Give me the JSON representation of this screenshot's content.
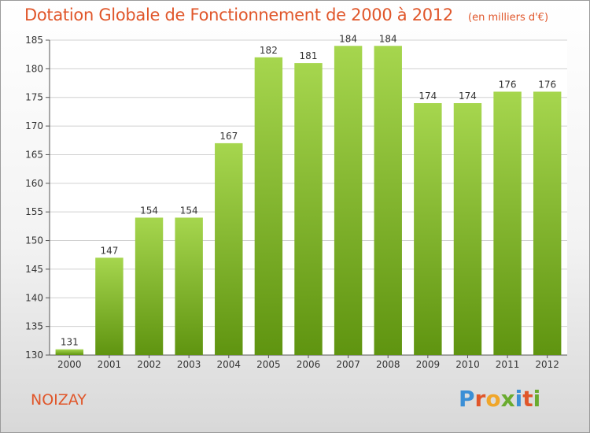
{
  "header": {
    "title": "Dotation Globale de Fonctionnement de 2000 à 2012",
    "unit": "(en milliers d'€)"
  },
  "footer": {
    "commune": "NOIZAY",
    "brand": "Proxiti",
    "brand_colors": [
      "#3b8fd6",
      "#e0562a",
      "#f0a62a",
      "#6aab2f",
      "#3b8fd6",
      "#e0562a",
      "#6aab2f"
    ]
  },
  "colors": {
    "bar_light": "#a6d64e",
    "bar_dark": "#5f9410",
    "grid": "#d0d0d0",
    "axis": "#555555",
    "text": "#333333"
  },
  "chart_data": {
    "type": "bar",
    "categories": [
      "2000",
      "2001",
      "2002",
      "2003",
      "2004",
      "2005",
      "2006",
      "2007",
      "2008",
      "2009",
      "2010",
      "2011",
      "2012"
    ],
    "values": [
      131,
      147,
      154,
      154,
      167,
      182,
      181,
      184,
      184,
      174,
      174,
      176,
      176
    ],
    "data_labels": [
      "131",
      "147",
      "154",
      "154",
      "167",
      "182",
      "181",
      "184",
      "184",
      "174",
      "174",
      "176",
      "176"
    ],
    "yticks": [
      "130",
      "135",
      "140",
      "145",
      "150",
      "155",
      "160",
      "165",
      "170",
      "175",
      "180",
      "185"
    ],
    "ylim": [
      130,
      185
    ],
    "grid": true,
    "legend": "none"
  }
}
